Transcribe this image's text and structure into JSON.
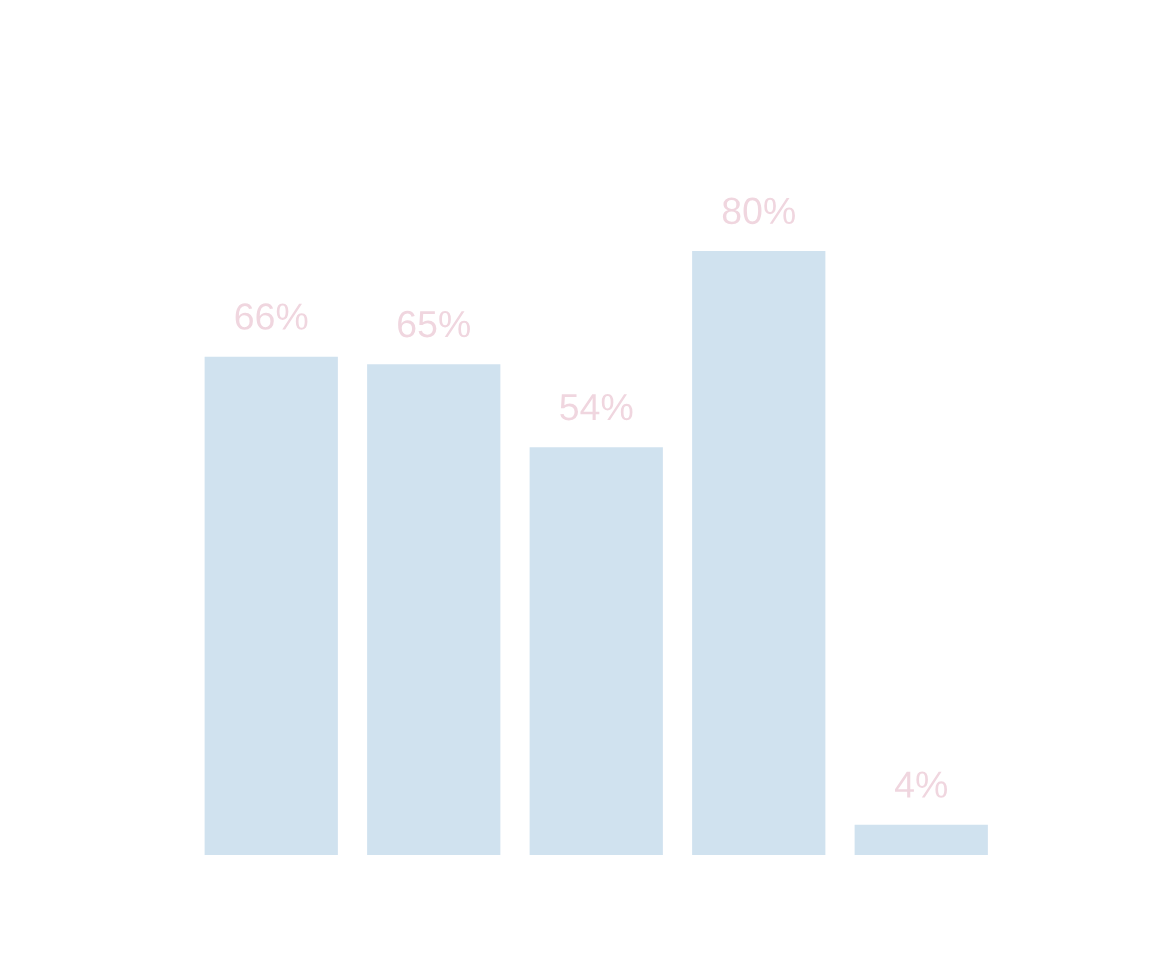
{
  "chart_data": {
    "type": "bar",
    "categories": [
      null,
      null,
      null,
      null,
      null
    ],
    "values": [
      66,
      65,
      54,
      80,
      4
    ],
    "value_labels": [
      "66%",
      "65%",
      "54%",
      "80%",
      "4%"
    ],
    "color": "#d0e2ef",
    "grid": false
  }
}
